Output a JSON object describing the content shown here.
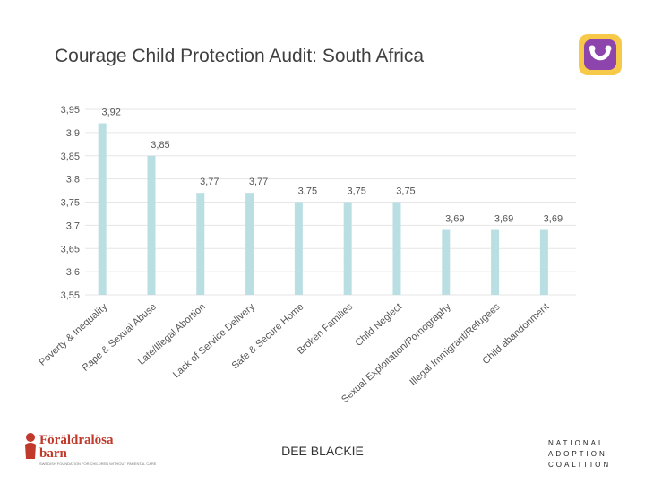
{
  "header": {
    "title": "Courage Child Protection Audit: South Africa",
    "logo_icon": "heart-u-icon"
  },
  "chart_data": {
    "type": "bar",
    "title": "Courage Child Protection Audit: South Africa",
    "xlabel": "",
    "ylabel": "",
    "ylim": [
      3.55,
      3.95
    ],
    "yticks": [
      "3,55",
      "3,6",
      "3,65",
      "3,7",
      "3,75",
      "3,8",
      "3,85",
      "3,9",
      "3,95"
    ],
    "ytick_values": [
      3.55,
      3.6,
      3.65,
      3.7,
      3.75,
      3.8,
      3.85,
      3.9,
      3.95
    ],
    "grid": true,
    "categories": [
      "Poverty & Inequality",
      "Rape & Sexual Abuse",
      "Late/Illegal Abortion",
      "Lack of Service Delivery",
      "Safe & Secure Home",
      "Broken Families",
      "Child Neglect",
      "Sexual Exploitation/Pornography",
      "Illegal Immigrant/Refugees",
      "Child abandonment"
    ],
    "values": [
      3.92,
      3.85,
      3.77,
      3.77,
      3.75,
      3.75,
      3.75,
      3.69,
      3.69,
      3.69
    ],
    "value_labels": [
      "3,92",
      "3,85",
      "3,77",
      "3,77",
      "3,75",
      "3,75",
      "3,75",
      "3,69",
      "3,69",
      "3,69"
    ],
    "bar_color": "#b9dfe3",
    "grid_color": "#e6e6e6"
  },
  "footer": {
    "center_text": "DEE BLACKIE",
    "left_brand_line1": "Föräldralösa",
    "left_brand_line2": "barn",
    "left_brand_tagline": "SWEDISH FOUNDATION FOR CHILDREN WITHOUT PARENTAL CARE",
    "right_brand_line1": "NATIONAL",
    "right_brand_line2": "ADOPTION",
    "right_brand_line3": "COALITION"
  }
}
